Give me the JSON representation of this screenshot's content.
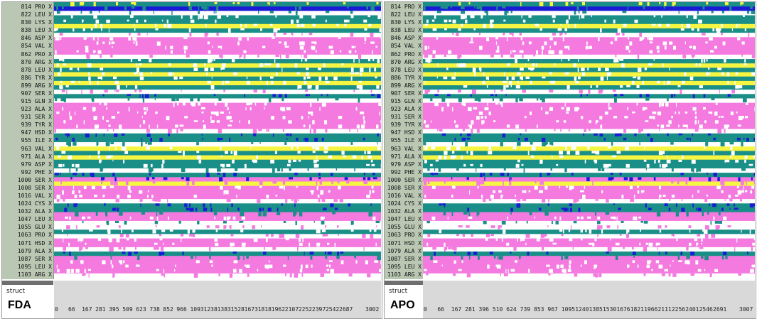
{
  "residue_labels": [
    "814 PRO X",
    "822 LEU X",
    "830 LYS X",
    "838 LEU X",
    "846 ASP X",
    "854 VAL X",
    "862 PRO X",
    "870 ARG X",
    "878 LEU X",
    "886 TYR X",
    "899 ARG X",
    "907 SER X",
    "915 GLN X",
    "923 ALA X",
    "931 SER X",
    "939 TYR X",
    "947 HSD X",
    "955 ILE X",
    "963 VAL X",
    "971 ALA X",
    "979 ASP X",
    "992 PHE X",
    "1000 SER X",
    "1008 SER X",
    "1016 VAL X",
    "1024 CYS X",
    "1032 ALA X",
    "1047 LEU X",
    "1055 GLU X",
    "1063 PRO X",
    "1071 HSD X",
    "1079 ALA X",
    "1087 SER X",
    "1095 LEU X",
    "1103 ARG X"
  ],
  "colors": {
    "pink": "#f47ae0",
    "teal": "#1a8f88",
    "yellow": "#f5f542",
    "blue": "#1b1bd6",
    "white": "#ffffff",
    "label_bg": "#b9c7b3"
  },
  "panels": [
    {
      "name": "FDA",
      "struct_label": "struct",
      "system_label": "FDA",
      "x_ticks": [
        "0",
        "66",
        "167",
        "281",
        "395",
        "509",
        "623",
        "738",
        "852",
        "966",
        "1093",
        "1238",
        "1383",
        "1528",
        "1673",
        "1818",
        "1962",
        "2107",
        "2252",
        "2397",
        "2542",
        "2687",
        "3002"
      ],
      "last_label": "1103 ARG X"
    },
    {
      "name": "APO",
      "struct_label": "struct",
      "system_label": "APO",
      "x_ticks": [
        "0",
        "66",
        "167",
        "281",
        "396",
        "510",
        "624",
        "739",
        "853",
        "967",
        "1095",
        "1240",
        "1385",
        "1530",
        "1676",
        "1821",
        "1966",
        "2111",
        "2256",
        "2401",
        "2546",
        "2691",
        "3007"
      ],
      "last_label": "1103 ARG X"
    }
  ],
  "bands": [
    {
      "c": "teal",
      "mix": "yellow"
    },
    {
      "c": "blue",
      "mix": "teal"
    },
    {
      "c": "white",
      "mix": "teal"
    },
    {
      "c": "teal",
      "mix": "white"
    },
    {
      "c": "teal",
      "mix": "white"
    },
    {
      "c": "yellow",
      "mix": "white"
    },
    {
      "c": "teal",
      "mix": "white"
    },
    {
      "c": "white",
      "mix": "pink"
    },
    {
      "c": "pink",
      "mix": "white"
    },
    {
      "c": "pink",
      "mix": "white"
    },
    {
      "c": "pink",
      "mix": "white"
    },
    {
      "c": "pink",
      "mix": "white"
    },
    {
      "c": "white",
      "mix": "pink"
    },
    {
      "c": "teal",
      "mix": "white"
    },
    {
      "c": "yellow",
      "mix": "white"
    },
    {
      "c": "teal",
      "mix": "white"
    },
    {
      "c": "yellow",
      "mix": "white"
    },
    {
      "c": "teal",
      "mix": "white"
    },
    {
      "c": "yellow",
      "mix": "white"
    },
    {
      "c": "teal",
      "mix": "white"
    },
    {
      "c": "white",
      "mix": "pink"
    },
    {
      "c": "teal",
      "mix": "blue"
    },
    {
      "c": "white",
      "mix": "teal"
    },
    {
      "c": "pink",
      "mix": "white"
    },
    {
      "c": "pink",
      "mix": "white"
    },
    {
      "c": "pink",
      "mix": "white"
    },
    {
      "c": "pink",
      "mix": "white"
    },
    {
      "c": "pink",
      "mix": "white"
    },
    {
      "c": "pink",
      "mix": "white"
    },
    {
      "c": "white",
      "mix": "pink"
    },
    {
      "c": "teal",
      "mix": "blue"
    },
    {
      "c": "teal",
      "mix": "blue"
    },
    {
      "c": "white",
      "mix": "teal"
    },
    {
      "c": "yellow",
      "mix": "white"
    },
    {
      "c": "teal",
      "mix": "white"
    },
    {
      "c": "yellow",
      "mix": "white"
    },
    {
      "c": "teal",
      "mix": "white"
    },
    {
      "c": "teal",
      "mix": "white"
    },
    {
      "c": "white",
      "mix": "teal"
    },
    {
      "c": "teal",
      "mix": "blue"
    },
    {
      "c": "pink",
      "mix": "blue"
    },
    {
      "c": "yellow",
      "mix": "pink"
    },
    {
      "c": "pink",
      "mix": "white"
    },
    {
      "c": "pink",
      "mix": "white"
    },
    {
      "c": "pink",
      "mix": "white"
    },
    {
      "c": "white",
      "mix": "pink"
    },
    {
      "c": "teal",
      "mix": "blue"
    },
    {
      "c": "teal",
      "mix": "blue"
    },
    {
      "c": "pink",
      "mix": "teal"
    },
    {
      "c": "pink",
      "mix": "white"
    },
    {
      "c": "white",
      "mix": "teal"
    },
    {
      "c": "white",
      "mix": "pink"
    },
    {
      "c": "teal",
      "mix": "white"
    },
    {
      "c": "white",
      "mix": "pink"
    },
    {
      "c": "pink",
      "mix": "white"
    },
    {
      "c": "pink",
      "mix": "white"
    },
    {
      "c": "white",
      "mix": "pink"
    },
    {
      "c": "teal",
      "mix": "blue"
    },
    {
      "c": "pink",
      "mix": "teal"
    },
    {
      "c": "pink",
      "mix": "white"
    },
    {
      "c": "pink",
      "mix": "white"
    },
    {
      "c": "pink",
      "mix": "white"
    },
    {
      "c": "white",
      "mix": "pink"
    }
  ]
}
